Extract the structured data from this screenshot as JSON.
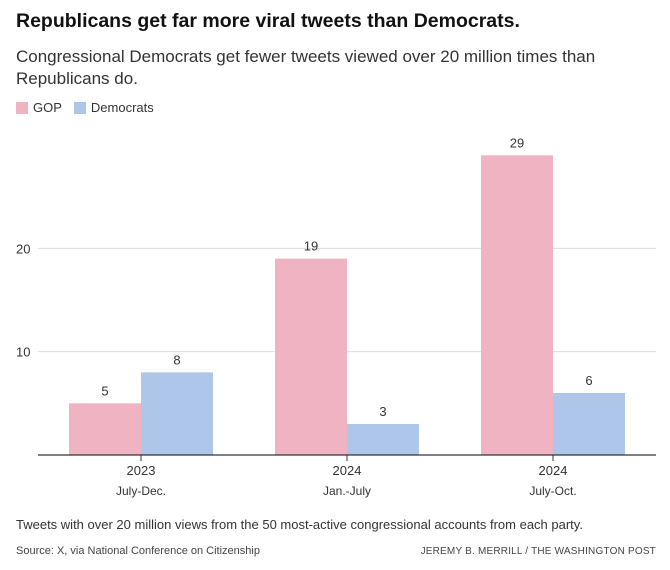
{
  "title": "Republicans get far more viral tweets than Democrats.",
  "subtitle": "Congressional Democrats get fewer tweets viewed over 20 million times than Republicans do.",
  "note": "Tweets with over 20 million views from the 50 most-active congressional accounts from each party.",
  "source": "Source: X, via National Conference on Citizenship",
  "credit": "JEREMY B. MERRILL / THE WASHINGTON POST",
  "colors": {
    "gop": "#efb3c1",
    "democrats": "#adc6e9",
    "axis": "#333333",
    "grid": "#dddddd",
    "text": "#333333"
  },
  "chart_data": {
    "type": "bar",
    "title": "Republicans get far more viral tweets than Democrats.",
    "subtitle": "Congressional Democrats get fewer tweets viewed over 20 million times than Republicans do.",
    "categories": [
      {
        "year": "2023",
        "period": "July-Dec."
      },
      {
        "year": "2024",
        "period": "Jan.-July"
      },
      {
        "year": "2024",
        "period": "July-Oct."
      }
    ],
    "series": [
      {
        "name": "GOP",
        "color": "#efb3c1",
        "values": [
          5,
          19,
          29
        ]
      },
      {
        "name": "Democrats",
        "color": "#adc6e9",
        "values": [
          8,
          3,
          6
        ]
      }
    ],
    "yticks": [
      10,
      20
    ],
    "ylim": [
      0,
      30
    ],
    "xlabel": "",
    "ylabel": "",
    "grid": true,
    "legend_position": "top-left",
    "data_labels": true
  }
}
